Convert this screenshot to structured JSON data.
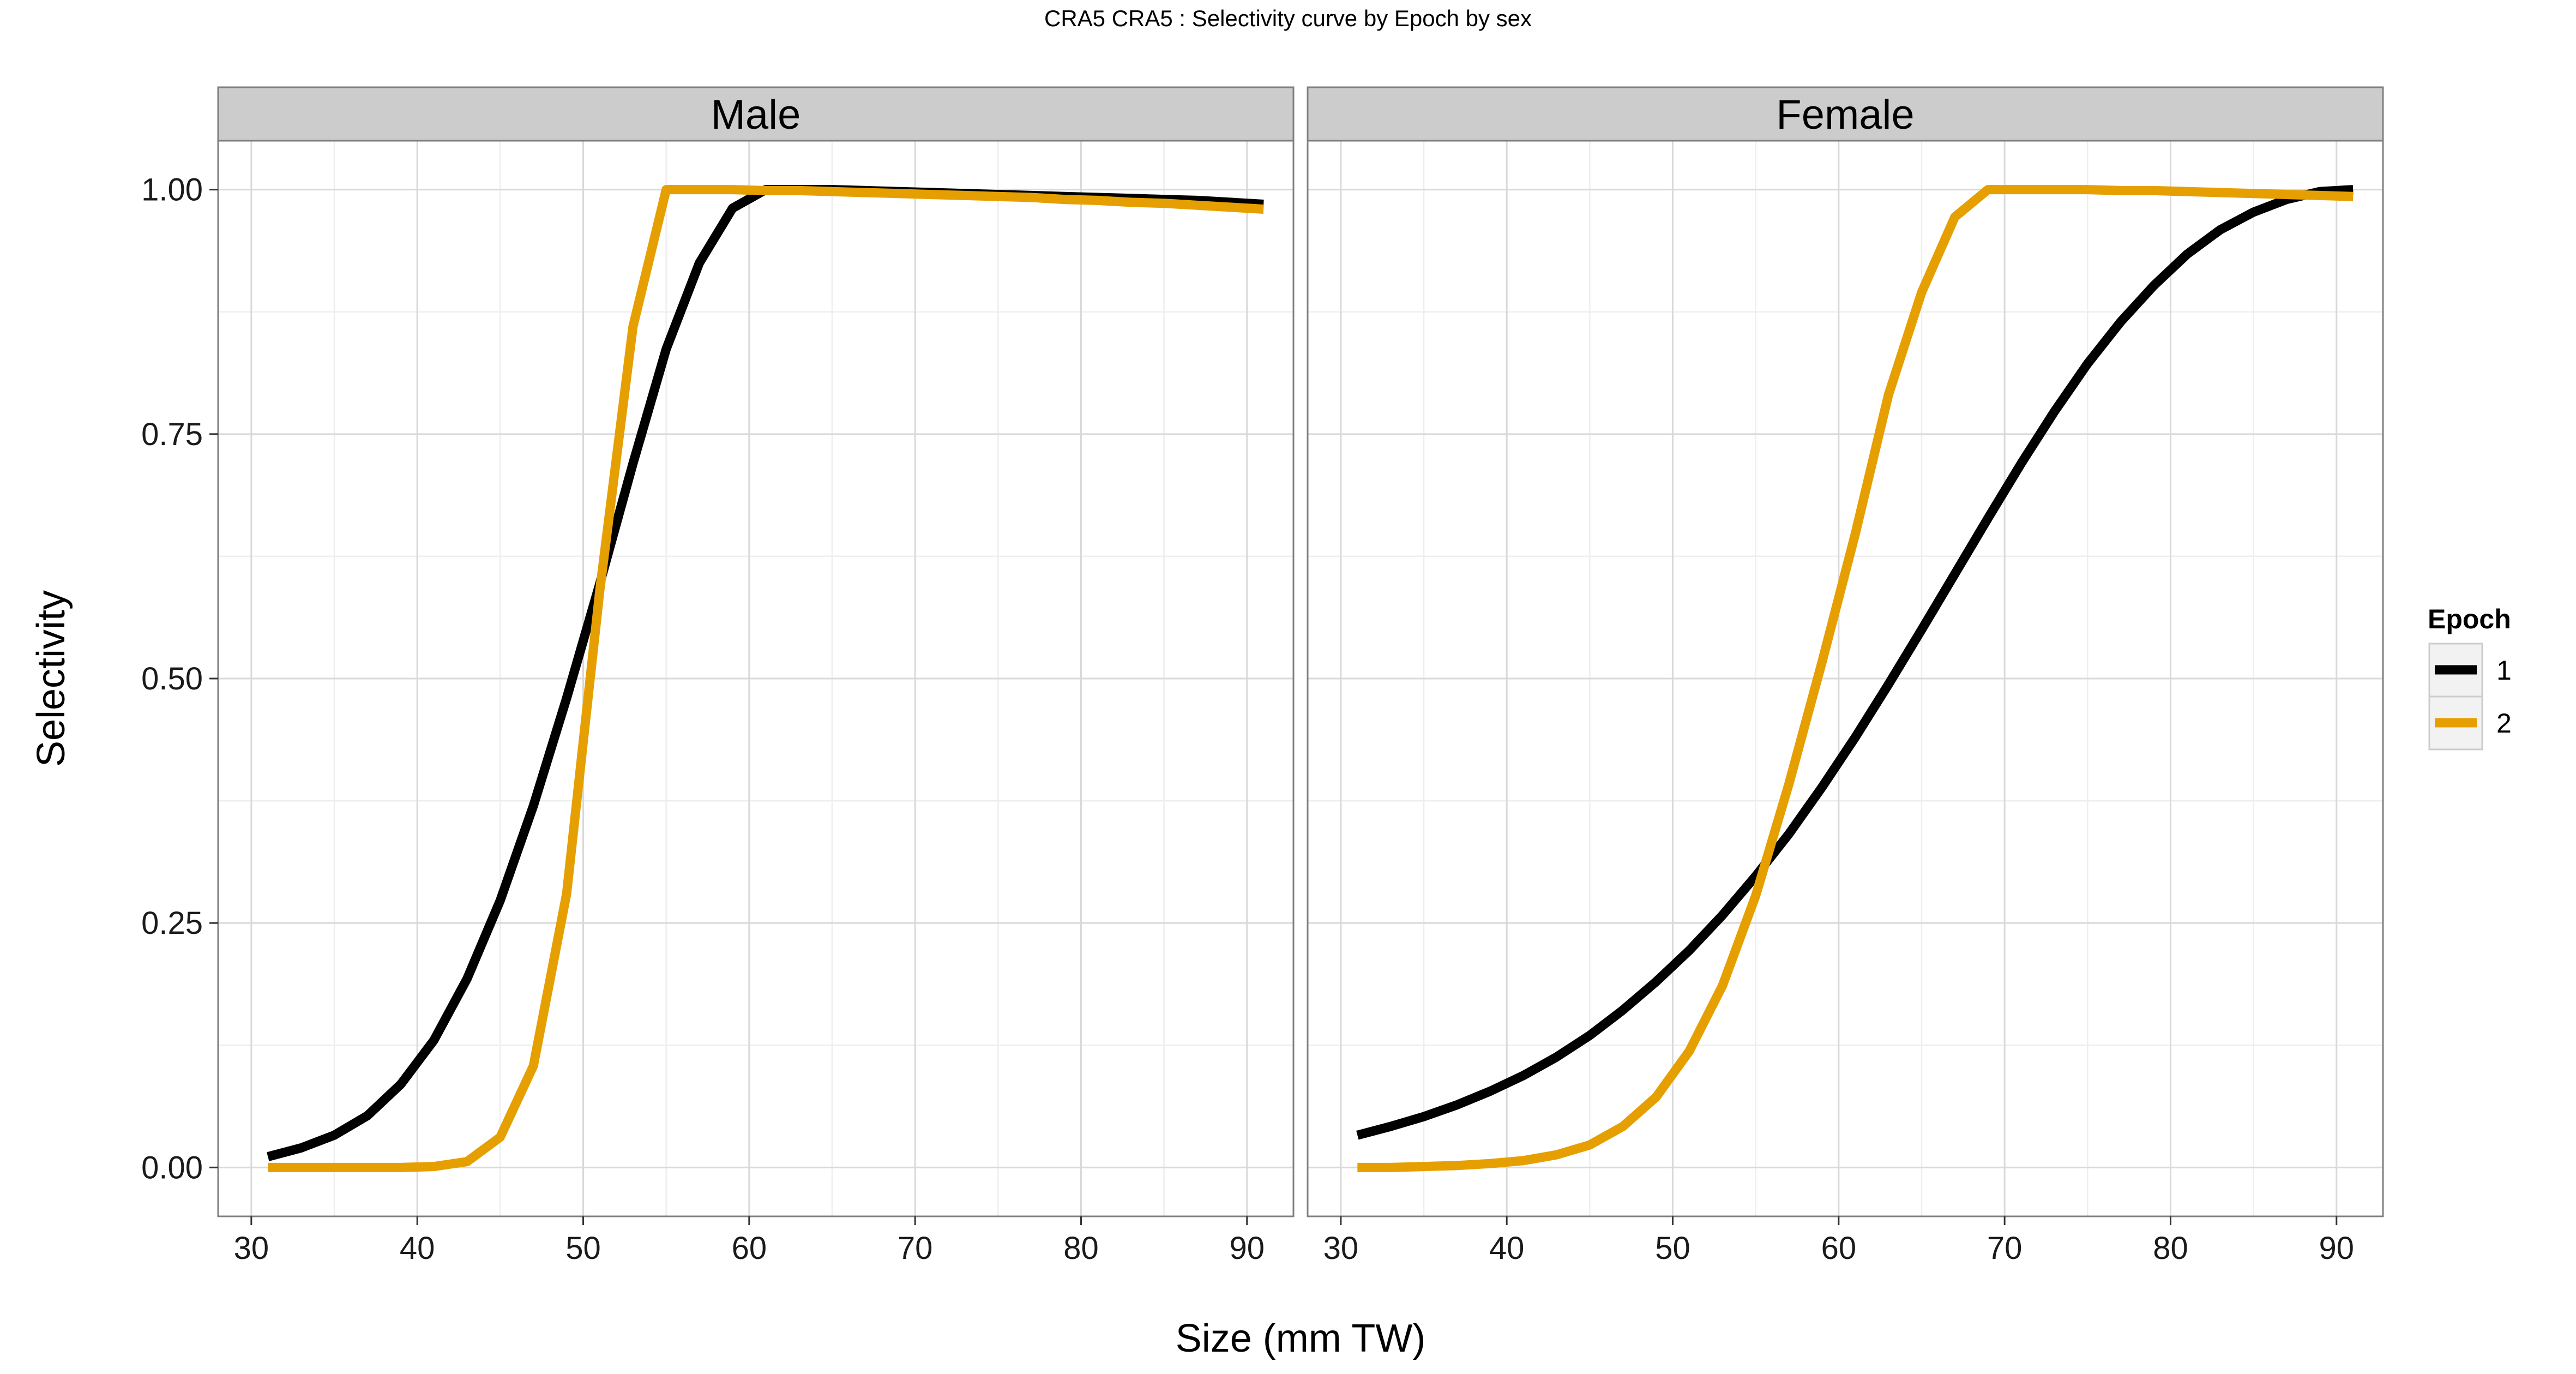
{
  "chart_data": {
    "type": "line",
    "title": "CRA5   CRA5 : Selectivity curve by Epoch by sex",
    "xlabel": "Size (mm TW)",
    "ylabel": "Selectivity",
    "xlim": [
      28,
      92.8
    ],
    "ylim": [
      -0.05,
      1.05
    ],
    "xticks": [
      30,
      40,
      50,
      60,
      70,
      80,
      90
    ],
    "xtick_labels": [
      "30",
      "40",
      "50",
      "60",
      "70",
      "80",
      "90"
    ],
    "yticks": [
      0,
      0.25,
      0.5,
      0.75,
      1.0
    ],
    "ytick_labels": [
      "0.00",
      "0.25",
      "0.50",
      "0.75",
      "1.00"
    ],
    "grid": true,
    "legend": {
      "title": "Epoch",
      "position": "right",
      "entries": [
        {
          "label": "1",
          "color": "#000000"
        },
        {
          "label": "2",
          "color": "#E69F00"
        }
      ]
    },
    "panels": [
      {
        "name": "Male",
        "series": [
          {
            "name": "1",
            "color": "#000000",
            "x": [
              31,
              33,
              35,
              37,
              39,
              41,
              43,
              45,
              47,
              49,
              51,
              53,
              55,
              57,
              59,
              61,
              63,
              65,
              67,
              69,
              71,
              73,
              75,
              77,
              79,
              81,
              83,
              85,
              87,
              89,
              91
            ],
            "y": [
              0.011,
              0.02,
              0.033,
              0.053,
              0.085,
              0.13,
              0.193,
              0.273,
              0.37,
              0.48,
              0.597,
              0.72,
              0.837,
              0.925,
              0.981,
              1.0,
              1.0,
              1.0,
              0.999,
              0.998,
              0.997,
              0.996,
              0.995,
              0.994,
              0.993,
              0.992,
              0.991,
              0.99,
              0.989,
              0.987,
              0.985
            ]
          },
          {
            "name": "2",
            "color": "#E69F00",
            "x": [
              31,
              33,
              35,
              37,
              39,
              41,
              43,
              45,
              47,
              49,
              51,
              53,
              55,
              57,
              59,
              61,
              63,
              65,
              67,
              69,
              71,
              73,
              75,
              77,
              79,
              81,
              83,
              85,
              87,
              89,
              91
            ],
            "y": [
              0.0,
              0.0,
              0.0,
              0.0,
              0.0,
              0.001,
              0.006,
              0.031,
              0.104,
              0.28,
              0.59,
              0.86,
              1.0,
              1.0,
              1.0,
              0.999,
              0.999,
              0.998,
              0.997,
              0.996,
              0.995,
              0.994,
              0.993,
              0.992,
              0.99,
              0.989,
              0.987,
              0.986,
              0.984,
              0.982,
              0.98
            ]
          }
        ]
      },
      {
        "name": "Female",
        "series": [
          {
            "name": "1",
            "color": "#000000",
            "x": [
              31,
              33,
              35,
              37,
              39,
              41,
              43,
              45,
              47,
              49,
              51,
              53,
              55,
              57,
              59,
              61,
              63,
              65,
              67,
              69,
              71,
              73,
              75,
              77,
              79,
              81,
              83,
              85,
              87,
              89,
              91
            ],
            "y": [
              0.033,
              0.042,
              0.052,
              0.064,
              0.078,
              0.094,
              0.113,
              0.135,
              0.161,
              0.19,
              0.222,
              0.258,
              0.298,
              0.341,
              0.389,
              0.44,
              0.494,
              0.55,
              0.607,
              0.664,
              0.72,
              0.773,
              0.822,
              0.865,
              0.902,
              0.934,
              0.959,
              0.977,
              0.99,
              0.998,
              1.0
            ]
          },
          {
            "name": "2",
            "color": "#E69F00",
            "x": [
              31,
              33,
              35,
              37,
              39,
              41,
              43,
              45,
              47,
              49,
              51,
              53,
              55,
              57,
              59,
              61,
              63,
              65,
              67,
              69,
              71,
              73,
              75,
              77,
              79,
              81,
              83,
              85,
              87,
              89,
              91
            ],
            "y": [
              0.0,
              0.0,
              0.001,
              0.002,
              0.004,
              0.007,
              0.013,
              0.023,
              0.042,
              0.072,
              0.119,
              0.186,
              0.278,
              0.392,
              0.517,
              0.648,
              0.79,
              0.895,
              0.972,
              1.0,
              1.0,
              1.0,
              1.0,
              0.999,
              0.999,
              0.998,
              0.997,
              0.996,
              0.995,
              0.994,
              0.993
            ]
          }
        ]
      }
    ]
  }
}
